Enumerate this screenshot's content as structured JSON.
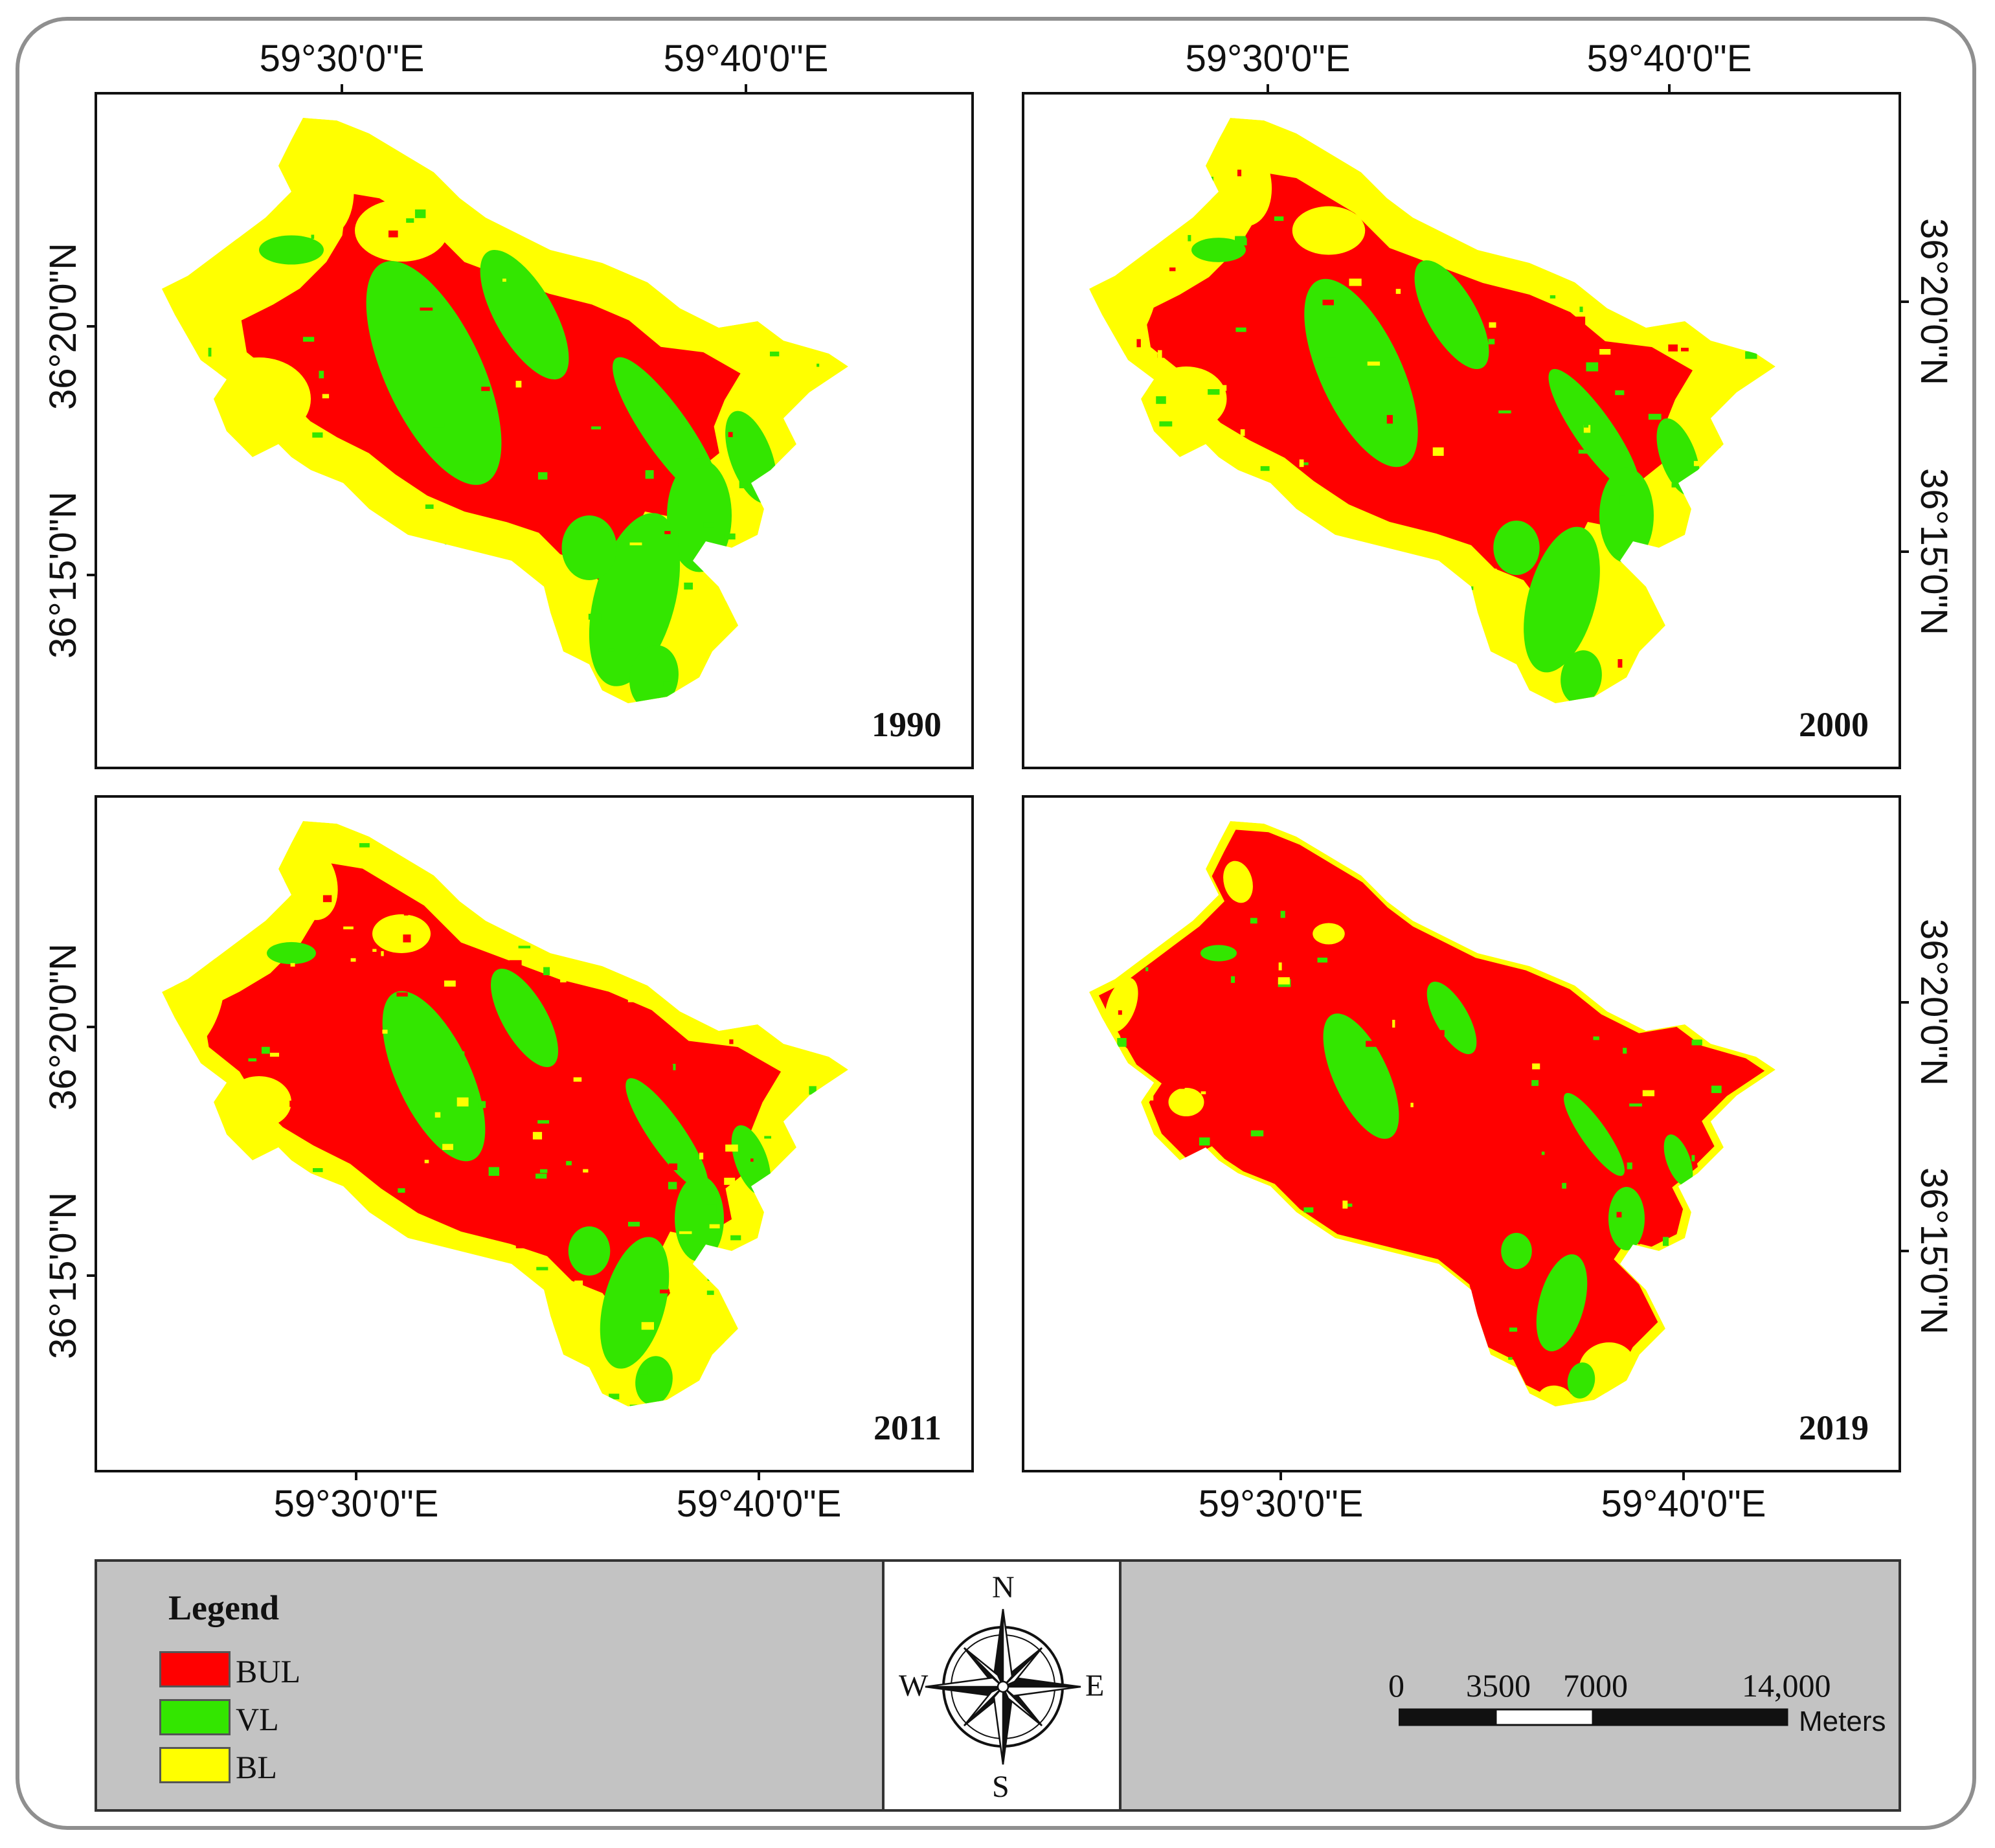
{
  "colors": {
    "built_up": "#ff0000",
    "vegetation": "#33e600",
    "bare_land": "#ffff00"
  },
  "coords": {
    "lon_30": "59°30'0\"E",
    "lon_40": "59°40'0\"E",
    "lat_20": "36°20'0\"N",
    "lat_15": "36°15'0\"N"
  },
  "panels": [
    {
      "year": "1990"
    },
    {
      "year": "2000"
    },
    {
      "year": "2011"
    },
    {
      "year": "2019"
    }
  ],
  "legend": {
    "title": "Legend",
    "items": [
      {
        "label": "BUL",
        "color": "#ff0000"
      },
      {
        "label": "VL",
        "color": "#33e600"
      },
      {
        "label": "BL",
        "color": "#ffff00"
      }
    ]
  },
  "compass": {
    "n": "N",
    "s": "S",
    "e": "E",
    "w": "W"
  },
  "scale_bar": {
    "ticks": [
      "0",
      "3500",
      "7000",
      "14,000"
    ],
    "units": "Meters"
  }
}
